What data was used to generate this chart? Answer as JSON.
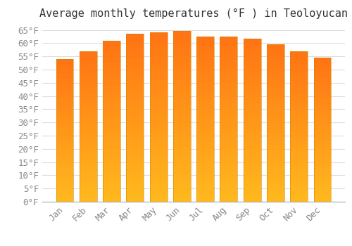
{
  "title": "Average monthly temperatures (°F ) in Teoloyucan",
  "months": [
    "Jan",
    "Feb",
    "Mar",
    "Apr",
    "May",
    "Jun",
    "Jul",
    "Aug",
    "Sep",
    "Oct",
    "Nov",
    "Dec"
  ],
  "values": [
    54.0,
    57.0,
    61.0,
    63.5,
    64.2,
    64.6,
    62.6,
    62.6,
    61.7,
    59.5,
    57.0,
    54.5
  ],
  "bar_color_top": "#FFA500",
  "bar_color_bottom": "#FFD070",
  "background_color": "#ffffff",
  "grid_color": "#dddddd",
  "ylim": [
    0,
    67
  ],
  "ytick_step": 5,
  "title_fontsize": 11,
  "tick_fontsize": 9,
  "font_family": "monospace",
  "label_color": "#888888"
}
